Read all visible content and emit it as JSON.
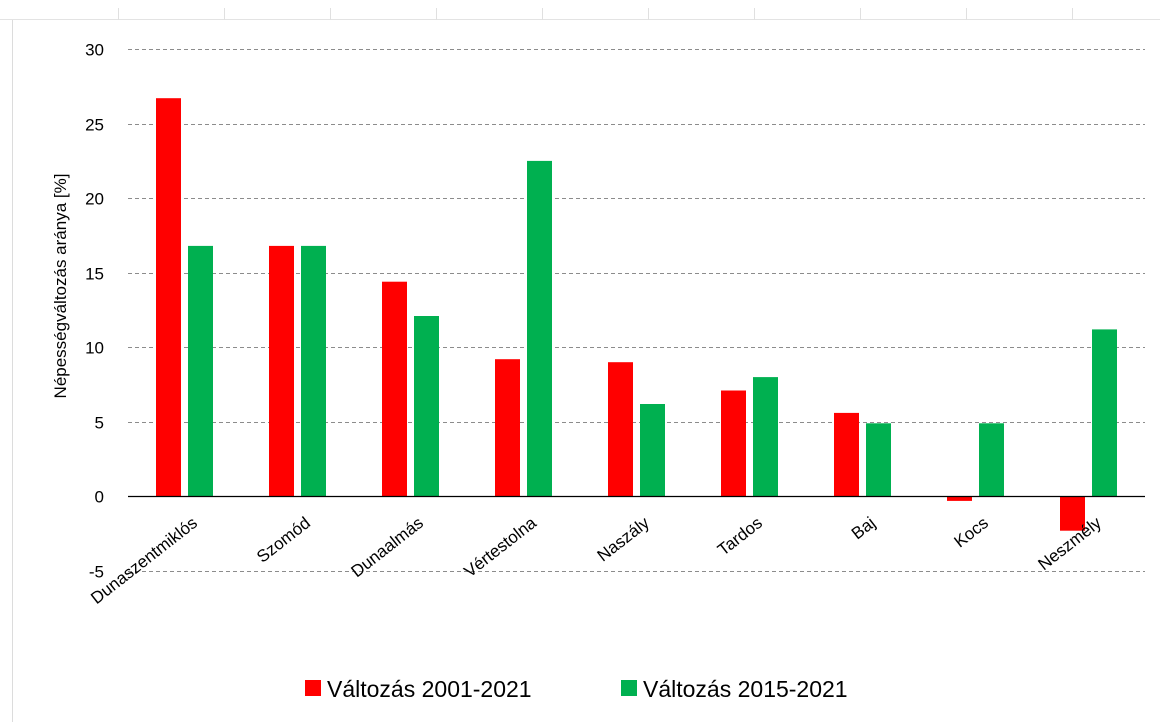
{
  "chart_data": {
    "type": "bar",
    "categories": [
      "Dunaszentmiklós",
      "Szomód",
      "Dunaalmás",
      "Vértestolna",
      "Naszály",
      "Tardos",
      "Baj",
      "Kocs",
      "Neszmély"
    ],
    "series": [
      {
        "name": "Változás 2001-2021",
        "color": "#ff0000",
        "values": [
          26.7,
          16.8,
          14.4,
          9.2,
          9.0,
          7.1,
          5.6,
          -0.3,
          -2.3
        ]
      },
      {
        "name": "Változás 2015-2021",
        "color": "#00b050",
        "values": [
          16.8,
          16.8,
          12.1,
          22.5,
          6.2,
          8.0,
          4.9,
          4.9,
          11.2
        ]
      }
    ],
    "ylabel": "Népességváltozás aránya [%]",
    "ylim": [
      -5,
      30
    ],
    "yticks": [
      -5,
      0,
      5,
      10,
      15,
      20,
      25,
      30
    ],
    "grid": "horizontal-dashed",
    "legend": "bottom"
  }
}
